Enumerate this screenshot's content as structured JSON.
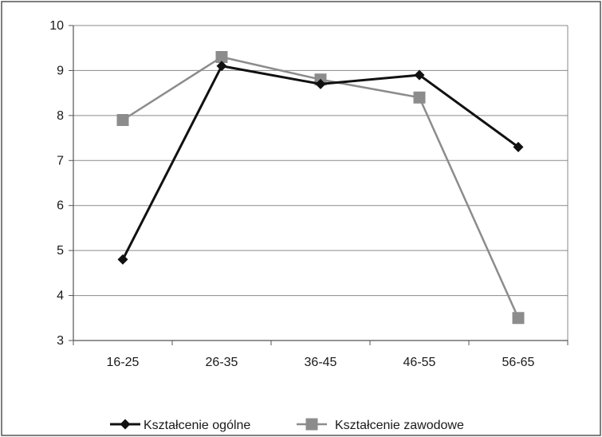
{
  "chart_data": {
    "type": "line",
    "categories": [
      "16-25",
      "26-35",
      "36-45",
      "46-55",
      "56-65"
    ],
    "series": [
      {
        "name": "Kształcenie ogólne",
        "values": [
          4.8,
          9.1,
          8.7,
          8.9,
          7.3
        ],
        "color": "#111111",
        "marker": "diamond"
      },
      {
        "name": "Kształcenie zawodowe",
        "values": [
          7.9,
          9.3,
          8.8,
          8.4,
          3.5
        ],
        "color": "#8c8c8c",
        "marker": "square"
      }
    ],
    "yticks": [
      "3",
      "4",
      "5",
      "6",
      "7",
      "8",
      "9",
      "10"
    ],
    "ylim": [
      3,
      10
    ],
    "grid": true,
    "legend_position": "bottom",
    "title": "",
    "xlabel": "",
    "ylabel": ""
  }
}
